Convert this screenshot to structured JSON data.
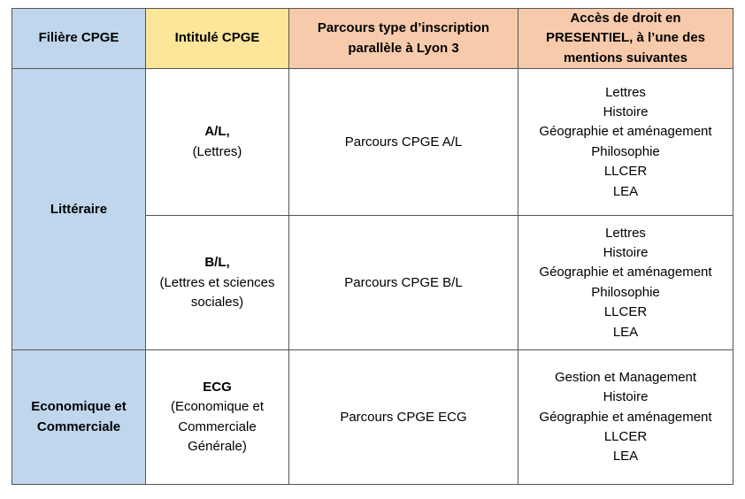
{
  "headers": [
    "Filière CPGE",
    "Intitulé CPGE",
    "Parcours type d’inscription parallèle à Lyon 3",
    "Accès de droit en PRESENTIEL, à l’une des mentions suivantes"
  ],
  "groups": [
    {
      "filiere": "Littéraire"
    },
    {
      "filiere": "Economique et Commerciale"
    }
  ],
  "rows": [
    {
      "code": "A/L,",
      "name": "(Lettres)",
      "parcours": "Parcours CPGE A/L",
      "mentions": [
        "Lettres",
        "Histoire",
        "Géographie et aménagement",
        "Philosophie",
        "LLCER",
        "LEA"
      ]
    },
    {
      "code": "B/L,",
      "name": "(Lettres et sciences sociales)",
      "parcours": "Parcours CPGE B/L",
      "mentions": [
        "Lettres",
        "Histoire",
        "Géographie et aménagement",
        "Philosophie",
        "LLCER",
        "LEA"
      ]
    },
    {
      "code": "ECG",
      "name": "(Economique et Commerciale Générale)",
      "parcours": "Parcours CPGE ECG",
      "mentions": [
        "Gestion et Management",
        "Histoire",
        "Géographie et aménagement",
        "LLCER",
        "LEA"
      ]
    }
  ],
  "colors": {
    "filiere_bg": "#bfd6ec",
    "intitule_header_bg": "#fde59a",
    "parcours_header_bg": "#f7caac"
  }
}
